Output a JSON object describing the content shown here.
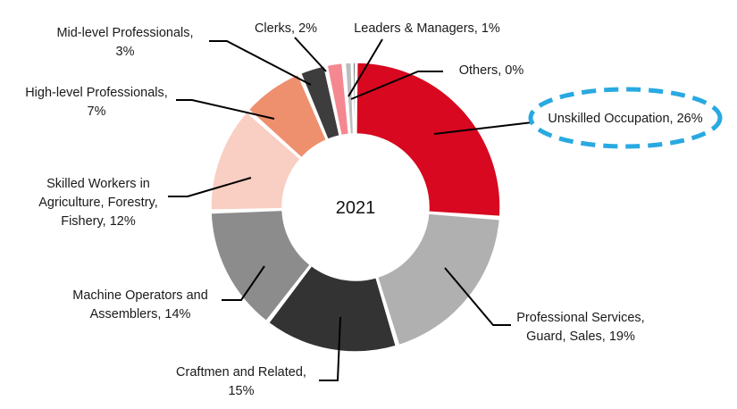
{
  "chart_data": {
    "type": "pie",
    "center_label": "2021",
    "unit": "%",
    "slices": [
      {
        "label_lines": [
          "Unskilled Occupation, 26%"
        ],
        "value": 26,
        "color": "#d7081f",
        "highlight_color": "#29a9e1"
      },
      {
        "label_lines": [
          "Professional Services,",
          "Guard, Sales, 19%"
        ],
        "value": 19,
        "color": "#b0b0b0"
      },
      {
        "label_lines": [
          "Craftmen  and Related,",
          "15%"
        ],
        "value": 15,
        "color": "#333333"
      },
      {
        "label_lines": [
          "Machine Operators and",
          "Assemblers, 14%"
        ],
        "value": 14,
        "color": "#8c8c8c"
      },
      {
        "label_lines": [
          "Skilled Workers in",
          "Agriculture, Forestry,",
          "Fishery, 12%"
        ],
        "value": 12,
        "color": "#f8cfc2"
      },
      {
        "label_lines": [
          "High-level Professionals,",
          "7%"
        ],
        "value": 7,
        "color": "#ee8f6e"
      },
      {
        "label_lines": [
          "Mid-level Professionals,",
          "3%"
        ],
        "value": 3,
        "color": "#3d3d3d"
      },
      {
        "label_lines": [
          "Clerks, 2%"
        ],
        "value": 2,
        "color": "#f58790"
      },
      {
        "label_lines": [
          "Leaders & Managers, 1%"
        ],
        "value": 1,
        "color": "#bdbdbd"
      },
      {
        "label_lines": [
          "Others, 0%"
        ],
        "value": 0.3,
        "color": "#6b6b6b"
      }
    ]
  }
}
